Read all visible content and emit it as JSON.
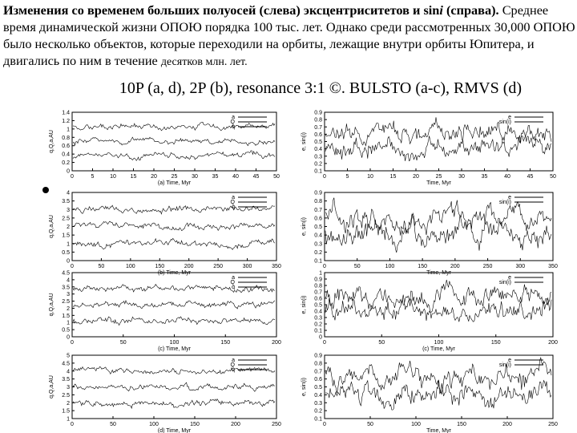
{
  "text": {
    "bold_start": "Изменения со временем больших полуосей (слева) эксцентриситетов и sin",
    "italic": "i",
    "bold_end": " (справа).",
    "body": " Среднее время динамической жизни ОПОЮ порядка 100 тыс. лет. Однако среди рассмотренных 30,000 ОПОЮ было несколько объектов, которые переходили на орбиты, лежащие внутри орбиты Юпитера, и двигались по ним в течение ",
    "small": "десятков млн. лет."
  },
  "figure": {
    "title": "10P (a, d), 2P (b), resonance 3:1 ©. BULSTO (a-c), RMVS (d)",
    "panels": [
      {
        "ylabel": "q,Q,a,AU",
        "yticks": [
          "0",
          "0.2",
          "0.4",
          "0.6",
          "0.8",
          "1",
          "1.2",
          "1.4"
        ],
        "xticks": [
          "0",
          "5",
          "10",
          "15",
          "20",
          "25",
          "30",
          "35",
          "40",
          "45",
          "50"
        ],
        "caption": "(a)    Time, Myr",
        "legend": [
          "a",
          "Q",
          "q"
        ]
      },
      {
        "ylabel": "e, sin(i)",
        "yticks": [
          "0.1",
          "0.2",
          "0.3",
          "0.4",
          "0.5",
          "0.6",
          "0.7",
          "0.8",
          "0.9"
        ],
        "xticks": [
          "0",
          "5",
          "10",
          "15",
          "20",
          "25",
          "30",
          "35",
          "40",
          "45",
          "50"
        ],
        "caption": "Time, Myr",
        "legend": [
          "e",
          "sin(i)"
        ]
      },
      {
        "ylabel": "q,Q,a,AU",
        "yticks": [
          "0",
          "0.5",
          "1",
          "1.5",
          "2",
          "2.5",
          "3",
          "3.5",
          "4"
        ],
        "xticks": [
          "0",
          "50",
          "100",
          "150",
          "200",
          "250",
          "300",
          "350"
        ],
        "caption": "(b)    Time, Myr",
        "legend": [
          "a",
          "Q",
          "q"
        ]
      },
      {
        "ylabel": "e, sin(i)",
        "yticks": [
          "0.1",
          "0.2",
          "0.3",
          "0.4",
          "0.5",
          "0.6",
          "0.7",
          "0.8",
          "0.9"
        ],
        "xticks": [
          "0",
          "50",
          "100",
          "150",
          "200",
          "250",
          "300",
          "350"
        ],
        "caption": "Time, Myr",
        "legend": [
          "e",
          "sin(i)"
        ]
      },
      {
        "ylabel": "q,Q,a,AU",
        "yticks": [
          "0",
          "0.5",
          "1",
          "1.5",
          "2",
          "2.5",
          "3",
          "3.5",
          "4",
          "4.5"
        ],
        "xticks": [
          "0",
          "50",
          "100",
          "150",
          "200"
        ],
        "caption": "(c)    Time, Myr",
        "legend": [
          "a",
          "Q",
          "q"
        ]
      },
      {
        "ylabel": "e, sin(i)",
        "yticks": [
          "0",
          "0.1",
          "0.2",
          "0.3",
          "0.4",
          "0.5",
          "0.6",
          "0.7",
          "0.8",
          "0.9",
          "1"
        ],
        "xticks": [
          "0",
          "50",
          "100",
          "150",
          "200"
        ],
        "caption": "(c)    Time, Myr",
        "legend": [
          "e",
          "sin(i)"
        ]
      },
      {
        "ylabel": "q,Q,a,AU",
        "yticks": [
          "1",
          "1.5",
          "2",
          "2.5",
          "3",
          "3.5",
          "4",
          "4.5",
          "5"
        ],
        "xticks": [
          "0",
          "50",
          "100",
          "150",
          "200",
          "250"
        ],
        "caption": "(d)    Time, Myr",
        "legend": [
          "a",
          "Q",
          "q"
        ]
      },
      {
        "ylabel": "e, sin(i)",
        "yticks": [
          "0.1",
          "0.2",
          "0.3",
          "0.4",
          "0.5",
          "0.6",
          "0.7",
          "0.8",
          "0.9"
        ],
        "xticks": [
          "0",
          "50",
          "100",
          "150",
          "200",
          "250"
        ],
        "caption": "Time, Myr",
        "legend": [
          "e",
          "sin(i)"
        ]
      }
    ]
  }
}
